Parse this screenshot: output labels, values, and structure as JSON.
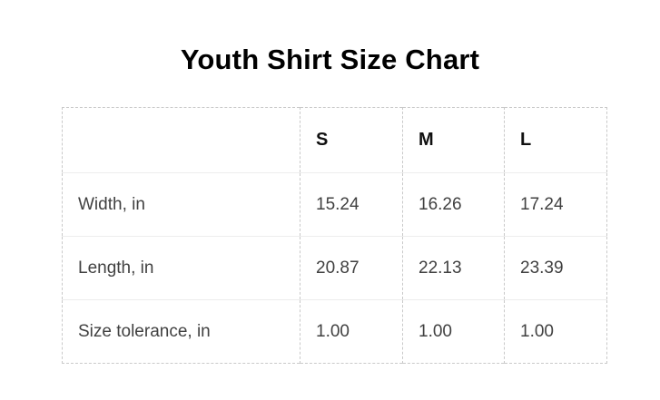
{
  "title": "Youth Shirt Size Chart",
  "table": {
    "header": [
      "",
      "S",
      "M",
      "L"
    ],
    "rows": [
      [
        "Width, in",
        "15.24",
        "16.26",
        "17.24"
      ],
      [
        "Length, in",
        "20.87",
        "22.13",
        "23.39"
      ],
      [
        "Size tolerance, in",
        "1.00",
        "1.00",
        "1.00"
      ]
    ]
  },
  "colors": {
    "background": "#ffffff",
    "title_text": "#000000",
    "header_text": "#111111",
    "cell_text": "#414141",
    "dashed_border": "#c9c9c9",
    "row_divider": "#ededed"
  },
  "chart_data": {
    "type": "table",
    "title": "Youth Shirt Size Chart",
    "columns": [
      "S",
      "M",
      "L"
    ],
    "row_labels": [
      "Width, in",
      "Length, in",
      "Size tolerance, in"
    ],
    "series": [
      {
        "name": "Width, in",
        "values": [
          15.24,
          16.26,
          17.24
        ]
      },
      {
        "name": "Length, in",
        "values": [
          20.87,
          22.13,
          23.39
        ]
      },
      {
        "name": "Size tolerance, in",
        "values": [
          1.0,
          1.0,
          1.0
        ]
      }
    ]
  }
}
